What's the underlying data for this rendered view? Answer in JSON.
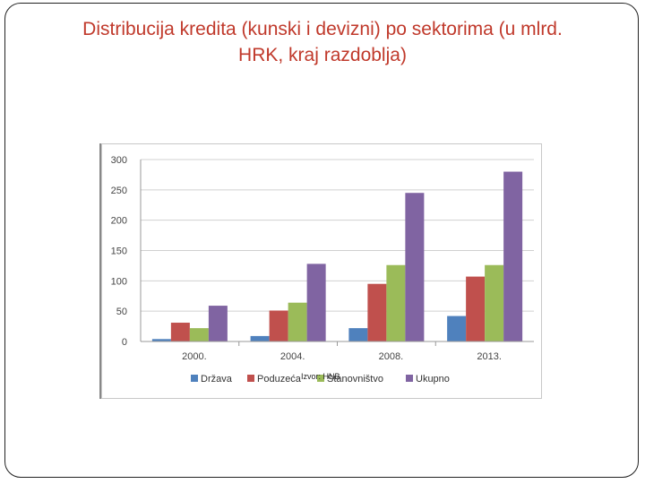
{
  "slide": {
    "title_line1": "Distribucija kredita (kunski i devizni) po sektorima (u mlrd.",
    "title_line2": "HRK, kraj razdoblja)"
  },
  "chart_data": {
    "type": "bar",
    "title": "",
    "xlabel": "",
    "ylabel": "",
    "categories": [
      "2000.",
      "2004.",
      "2008.",
      "2013."
    ],
    "series": [
      {
        "name": "Država",
        "color": "#4F81BD",
        "values": [
          4,
          9,
          22,
          42
        ]
      },
      {
        "name": "Poduzeća",
        "color": "#C0504D",
        "values": [
          31,
          51,
          95,
          107
        ]
      },
      {
        "name": "Stanovništvo",
        "color": "#9BBB59",
        "values": [
          22,
          64,
          126,
          126
        ]
      },
      {
        "name": "Ukupno",
        "color": "#8064A2",
        "values": [
          59,
          128,
          245,
          280
        ]
      }
    ],
    "ylim": [
      0,
      300
    ],
    "yticks": [
      0,
      50,
      100,
      150,
      200,
      250,
      300
    ],
    "grid": true,
    "legend_position": "bottom",
    "source_note": "Izvor: HNB"
  }
}
